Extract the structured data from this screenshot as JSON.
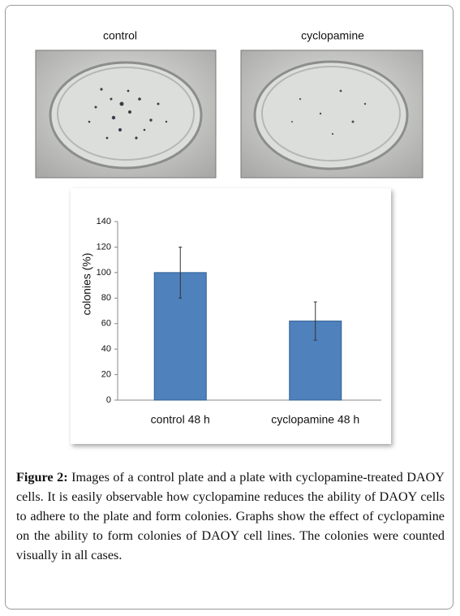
{
  "panels": {
    "left_label": "control",
    "right_label": "cyclopamine"
  },
  "chart_data": {
    "type": "bar",
    "y_label": "colonies (%)",
    "categories": [
      "control 48 h",
      "cyclopamine 48 h"
    ],
    "values": [
      100,
      62
    ],
    "errors": [
      20,
      15
    ],
    "color": "#4f81bd",
    "ylim": [
      0,
      140
    ],
    "yticks": [
      0,
      20,
      40,
      60,
      80,
      100,
      120,
      140
    ],
    "grid": false
  },
  "caption": {
    "label": "Figure 2:",
    "text": "Images of a control plate and a plate with cyclopamine-treated DAOY cells. It is easily observable how cyclopamine reduces the ability of DAOY cells to adhere to the plate and form colonies. Graphs show the effect of cyclopamine on the ability to form colonies of DAOY cell lines. The colonies were counted visually in all cases."
  }
}
